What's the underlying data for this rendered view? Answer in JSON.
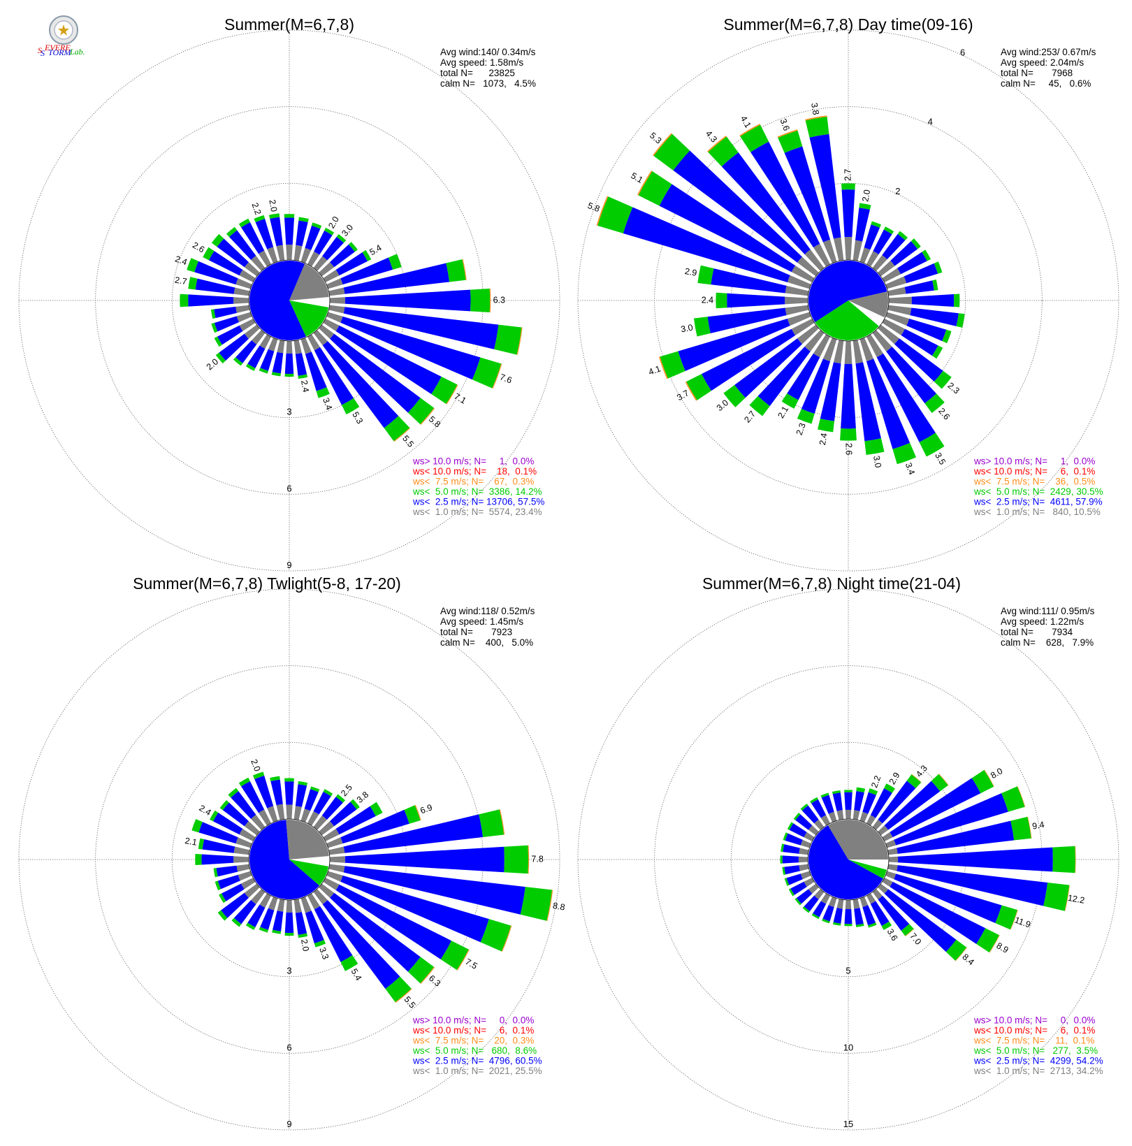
{
  "logo": {
    "text_s1": "S",
    "text_evere": "EVERE",
    "text_s2": "S",
    "text_torm": "TORM",
    "text_lab": "Lab."
  },
  "colors": {
    "calm": "#808080",
    "lt1": "#808080",
    "lt2_5": "#0000ff",
    "lt5": "#00cc00",
    "lt7_5": "#ff8c1a",
    "lt10": "#ff0000",
    "gt10": "#9900cc"
  },
  "chart_data": [
    {
      "type": "windrose",
      "title": "Summer(M=6,7,8)",
      "stats": [
        "Avg wind:140/ 0.34m/s",
        "Avg speed: 1.58m/s",
        "total N=      23825",
        "calm N=   1073,   4.5%"
      ],
      "legend": [
        {
          "text": "ws> 10.0 m/s; N=     1,  0.0%",
          "color": "#9900cc"
        },
        {
          "text": "ws< 10.0 m/s; N=    18,  0.1%",
          "color": "#ff0000"
        },
        {
          "text": "ws<  7.5 m/s; N=    67,  0.3%",
          "color": "#ff8c1a"
        },
        {
          "text": "ws<  5.0 m/s; N=  3386, 14.2%",
          "color": "#00cc00"
        },
        {
          "text": "ws<  2.5 m/s; N= 13706, 57.5%",
          "color": "#0000ff"
        },
        {
          "text": "ws<  1.0 m/s; N=  5574, 23.4%",
          "color": "#808080"
        }
      ],
      "rings": [
        3,
        6,
        9
      ],
      "ring_labels": [
        "3",
        "6",
        "9"
      ],
      "calm_percent": 4.5,
      "calm_breakdown": {
        "lt1": 0.18,
        "lt2_5": 0.66,
        "lt5": 0.16
      },
      "directions": [
        0,
        10,
        20,
        30,
        40,
        50,
        60,
        70,
        80,
        90,
        100,
        110,
        120,
        130,
        140,
        150,
        160,
        170,
        180,
        190,
        200,
        210,
        220,
        230,
        240,
        250,
        260,
        270,
        280,
        290,
        300,
        310,
        320,
        330,
        340,
        350
      ],
      "totals": [
        1.8,
        1.7,
        1.6,
        1.6,
        1.65,
        1.75,
        2.0,
        3.0,
        5.4,
        6.3,
        7.6,
        7.1,
        5.8,
        5.5,
        5.3,
        3.4,
        2.4,
        1.5,
        1.4,
        1.4,
        1.4,
        1.5,
        1.6,
        2.0,
        1.7,
        1.6,
        1.5,
        2.7,
        2.4,
        2.6,
        2.2,
        2.2,
        2.0,
        2.0,
        1.9,
        1.85
      ],
      "dir_labels": {
        "30": "2.0",
        "40": "3.0",
        "60": "5.4",
        "90": "6.3",
        "110": "7.6",
        "120": "7.1",
        "130": "5.8",
        "140": "5.5",
        "150": "5.3",
        "160": "3.4",
        "170": "2.4",
        "230": "2.0",
        "280": "2.7",
        "290": "2.4",
        "300": "2.6",
        "340": "2.2",
        "350": "2.0"
      }
    },
    {
      "type": "windrose",
      "title": "Summer(M=6,7,8) Day time(09-16)",
      "stats": [
        "Avg wind:253/ 0.67m/s",
        "Avg speed: 2.04m/s",
        "total N=       7968",
        "calm N=     45,   0.6%"
      ],
      "legend": [
        {
          "text": "ws> 10.0 m/s; N=     1,  0.0%",
          "color": "#9900cc"
        },
        {
          "text": "ws< 10.0 m/s; N=     6,  0.1%",
          "color": "#ff0000"
        },
        {
          "text": "ws<  7.5 m/s; N=    36,  0.5%",
          "color": "#ff8c1a"
        },
        {
          "text": "ws<  5.0 m/s; N=  2429, 30.5%",
          "color": "#00cc00"
        },
        {
          "text": "ws<  2.5 m/s; N=  4611, 57.9%",
          "color": "#0000ff"
        },
        {
          "text": "ws<  1.0 m/s; N=   840, 10.5%",
          "color": "#808080"
        }
      ],
      "rings": [
        2,
        4,
        6
      ],
      "ring_labels": [
        "2",
        "4",
        "6"
      ],
      "calm_percent": 0.6,
      "calm_breakdown": {
        "lt1": 0.11,
        "lt2_5": 0.58,
        "lt5": 0.31
      },
      "directions": [
        0,
        10,
        20,
        30,
        40,
        50,
        60,
        70,
        80,
        90,
        100,
        110,
        120,
        130,
        140,
        150,
        160,
        170,
        180,
        190,
        200,
        210,
        220,
        230,
        240,
        250,
        260,
        270,
        280,
        290,
        300,
        310,
        320,
        330,
        340,
        350
      ],
      "totals": [
        2.0,
        1.5,
        1.1,
        1.1,
        1.2,
        1.3,
        1.35,
        1.5,
        1.3,
        1.85,
        2.0,
        1.75,
        1.7,
        2.3,
        2.6,
        3.5,
        3.4,
        3.0,
        2.6,
        2.4,
        2.3,
        2.1,
        2.7,
        3.0,
        3.7,
        4.1,
        3.0,
        2.4,
        2.9,
        5.8,
        5.1,
        5.3,
        4.3,
        4.1,
        3.6,
        3.8
      ],
      "dir_labels": {
        "0": "2.7",
        "10": "2.0",
        "130": "2.3",
        "140": "2.6",
        "150": "3.5",
        "160": "3.4",
        "170": "3.0",
        "180": "2.6",
        "190": "2.4",
        "200": "2.3",
        "210": "2.1",
        "220": "2.7",
        "230": "3.0",
        "240": "3.7",
        "250": "4.1",
        "260": "3.0",
        "270": "2.4",
        "280": "2.9",
        "290": "5.8",
        "300": "5.1",
        "310": "5.3",
        "320": "4.3",
        "330": "4.1",
        "340": "3.6",
        "350": "3.8"
      }
    },
    {
      "type": "windrose",
      "title": "Summer(M=6,7,8) Twlight(5-8, 17-20)",
      "stats": [
        "Avg wind:118/ 0.52m/s",
        "Avg speed: 1.45m/s",
        "total N=       7923",
        "calm N=    400,   5.0%"
      ],
      "legend": [
        {
          "text": "ws> 10.0 m/s; N=     0,  0.0%",
          "color": "#9900cc"
        },
        {
          "text": "ws< 10.0 m/s; N=     6,  0.1%",
          "color": "#ff0000"
        },
        {
          "text": "ws<  7.5 m/s; N=    20,  0.3%",
          "color": "#ff8c1a"
        },
        {
          "text": "ws<  5.0 m/s; N=   680,  8.6%",
          "color": "#00cc00"
        },
        {
          "text": "ws<  2.5 m/s; N=  4796, 60.5%",
          "color": "#0000ff"
        },
        {
          "text": "ws<  1.0 m/s; N=  2021, 25.5%",
          "color": "#808080"
        }
      ],
      "rings": [
        3,
        6,
        9
      ],
      "ring_labels": [
        "3",
        "6",
        "9"
      ],
      "calm_percent": 5.0,
      "calm_breakdown": {
        "lt1": 0.26,
        "lt2_5": 0.65,
        "lt5": 0.09
      },
      "directions": [
        0,
        10,
        20,
        30,
        40,
        50,
        60,
        70,
        80,
        90,
        100,
        110,
        120,
        130,
        140,
        150,
        160,
        170,
        180,
        190,
        200,
        210,
        220,
        230,
        240,
        250,
        260,
        270,
        280,
        290,
        300,
        310,
        320,
        330,
        340,
        350
      ],
      "totals": [
        1.6,
        1.5,
        1.4,
        1.5,
        1.6,
        1.85,
        2.5,
        3.8,
        6.9,
        7.8,
        8.8,
        7.5,
        6.3,
        5.5,
        5.4,
        3.3,
        2.0,
        1.5,
        1.4,
        1.35,
        1.4,
        1.5,
        1.7,
        1.9,
        1.5,
        1.45,
        1.4,
        2.1,
        2.0,
        2.4,
        1.9,
        1.8,
        1.9,
        2.0,
        2.0,
        1.7
      ],
      "dir_labels": {
        "40": "2.5",
        "50": "3.8",
        "70": "6.9",
        "90": "7.8",
        "100": "8.8",
        "120": "7.5",
        "130": "6.3",
        "140": "5.5",
        "150": "5.4",
        "160": "3.3",
        "170": "2.0",
        "280": "2.1",
        "300": "2.4",
        "340": "2.0"
      }
    },
    {
      "type": "windrose",
      "title": "Summer(M=6,7,8) Night time(21-04)",
      "stats": [
        "Avg wind:111/ 0.95m/s",
        "Avg speed: 1.22m/s",
        "total N=       7934",
        "calm N=    628,   7.9%"
      ],
      "legend": [
        {
          "text": "ws> 10.0 m/s; N=     0,  0.0%",
          "color": "#9900cc"
        },
        {
          "text": "ws< 10.0 m/s; N=     6,  0.1%",
          "color": "#ff0000"
        },
        {
          "text": "ws<  7.5 m/s; N=    11,  0.1%",
          "color": "#ff8c1a"
        },
        {
          "text": "ws<  5.0 m/s; N=   277,  3.5%",
          "color": "#00cc00"
        },
        {
          "text": "ws<  2.5 m/s; N=  4299, 54.2%",
          "color": "#0000ff"
        },
        {
          "text": "ws<  1.0 m/s; N=  2713, 34.2%",
          "color": "#808080"
        }
      ],
      "rings": [
        5,
        10,
        15
      ],
      "ring_labels": [
        "5",
        "10",
        "15"
      ],
      "calm_percent": 7.9,
      "calm_breakdown": {
        "lt1": 0.35,
        "lt2_5": 0.61,
        "lt5": 0.04
      },
      "directions": [
        0,
        10,
        20,
        30,
        40,
        50,
        60,
        70,
        80,
        90,
        100,
        110,
        120,
        130,
        140,
        150,
        160,
        170,
        180,
        190,
        200,
        210,
        220,
        230,
        240,
        250,
        260,
        270,
        280,
        290,
        300,
        310,
        320,
        330,
        340,
        350
      ],
      "totals": [
        1.9,
        2.1,
        2.2,
        2.9,
        4.3,
        5.5,
        8.0,
        9.4,
        9.4,
        12.2,
        11.9,
        8.9,
        8.4,
        7.0,
        3.6,
        2.5,
        2.0,
        1.8,
        1.7,
        1.7,
        1.7,
        1.7,
        1.7,
        1.7,
        1.7,
        1.7,
        1.7,
        1.8,
        1.8,
        1.8,
        1.8,
        1.8,
        1.9,
        1.9,
        1.9,
        1.9
      ],
      "dir_labels": {
        "20": "2.2",
        "30": "2.9",
        "40": "4.3",
        "60": "8.0",
        "80": "9.4",
        "100": "12.2",
        "110": "11.9",
        "120": "8.9",
        "130": "8.4",
        "140": "7.0",
        "150": "3.6"
      }
    }
  ]
}
